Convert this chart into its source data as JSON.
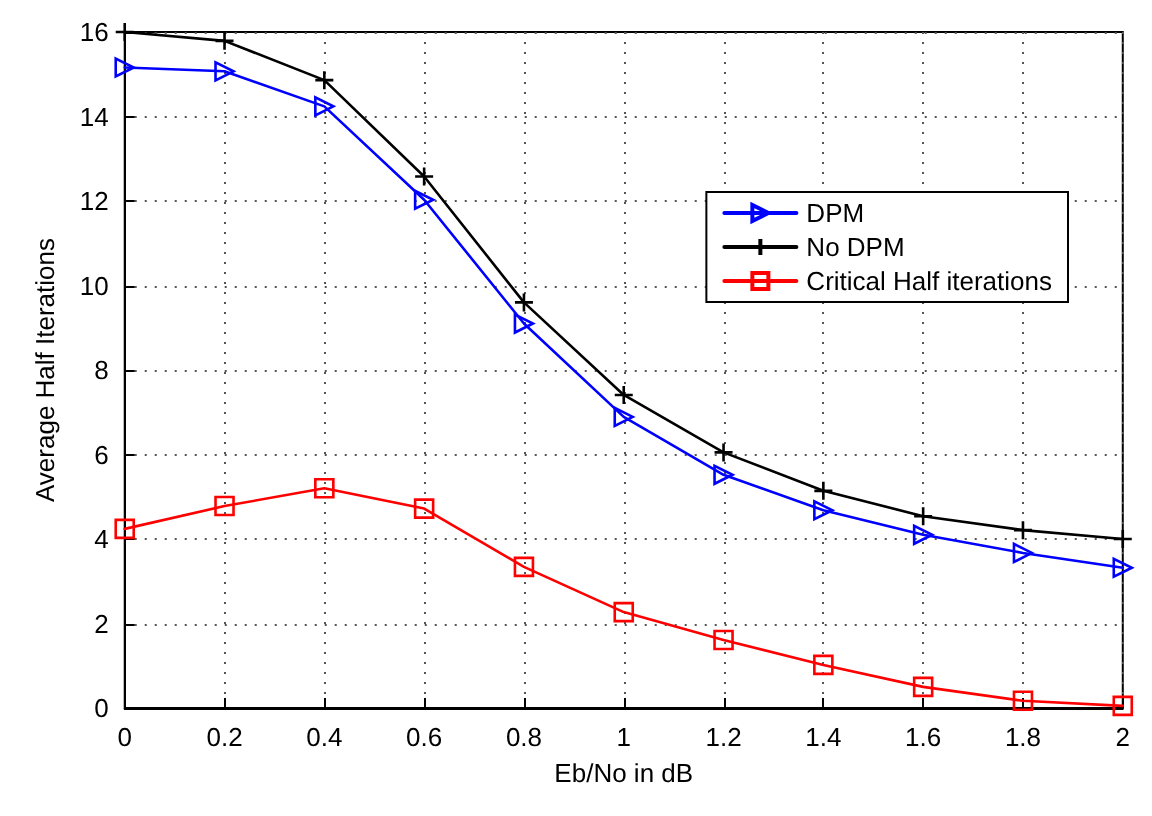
{
  "chart_data": {
    "type": "line",
    "xlabel": "Eb/No in dB",
    "ylabel": "Average Half Iterations",
    "x": [
      0,
      0.2,
      0.4,
      0.6,
      0.8,
      1,
      1.2,
      1.4,
      1.6,
      1.8,
      2
    ],
    "series": [
      {
        "name": "DPM",
        "color": "#0000ff",
        "marker": "triangle",
        "values": [
          15.16,
          15.07,
          14.24,
          12.03,
          9.1,
          6.89,
          5.52,
          4.68,
          4.1,
          3.67,
          3.32
        ]
      },
      {
        "name": "No DPM",
        "color": "#000000",
        "marker": "cross",
        "values": [
          16,
          15.79,
          14.86,
          12.58,
          9.6,
          7.41,
          6.05,
          5.14,
          4.54,
          4.21,
          4.0
        ]
      },
      {
        "name": "Critical Half iterations",
        "color": "#ff0000",
        "marker": "square",
        "values": [
          4.24,
          4.78,
          5.2,
          4.72,
          3.34,
          2.27,
          1.61,
          1.02,
          0.5,
          0.17,
          0.05
        ]
      }
    ],
    "xlim": [
      0,
      2
    ],
    "xticks": [
      0,
      0.2,
      0.4,
      0.6,
      0.8,
      1,
      1.2,
      1.4,
      1.6,
      1.8,
      2
    ],
    "ylim": [
      0,
      16
    ],
    "yticks": [
      0,
      2,
      4,
      6,
      8,
      10,
      12,
      14,
      16
    ],
    "grid": true,
    "legend": "right",
    "line_style": "solid"
  }
}
